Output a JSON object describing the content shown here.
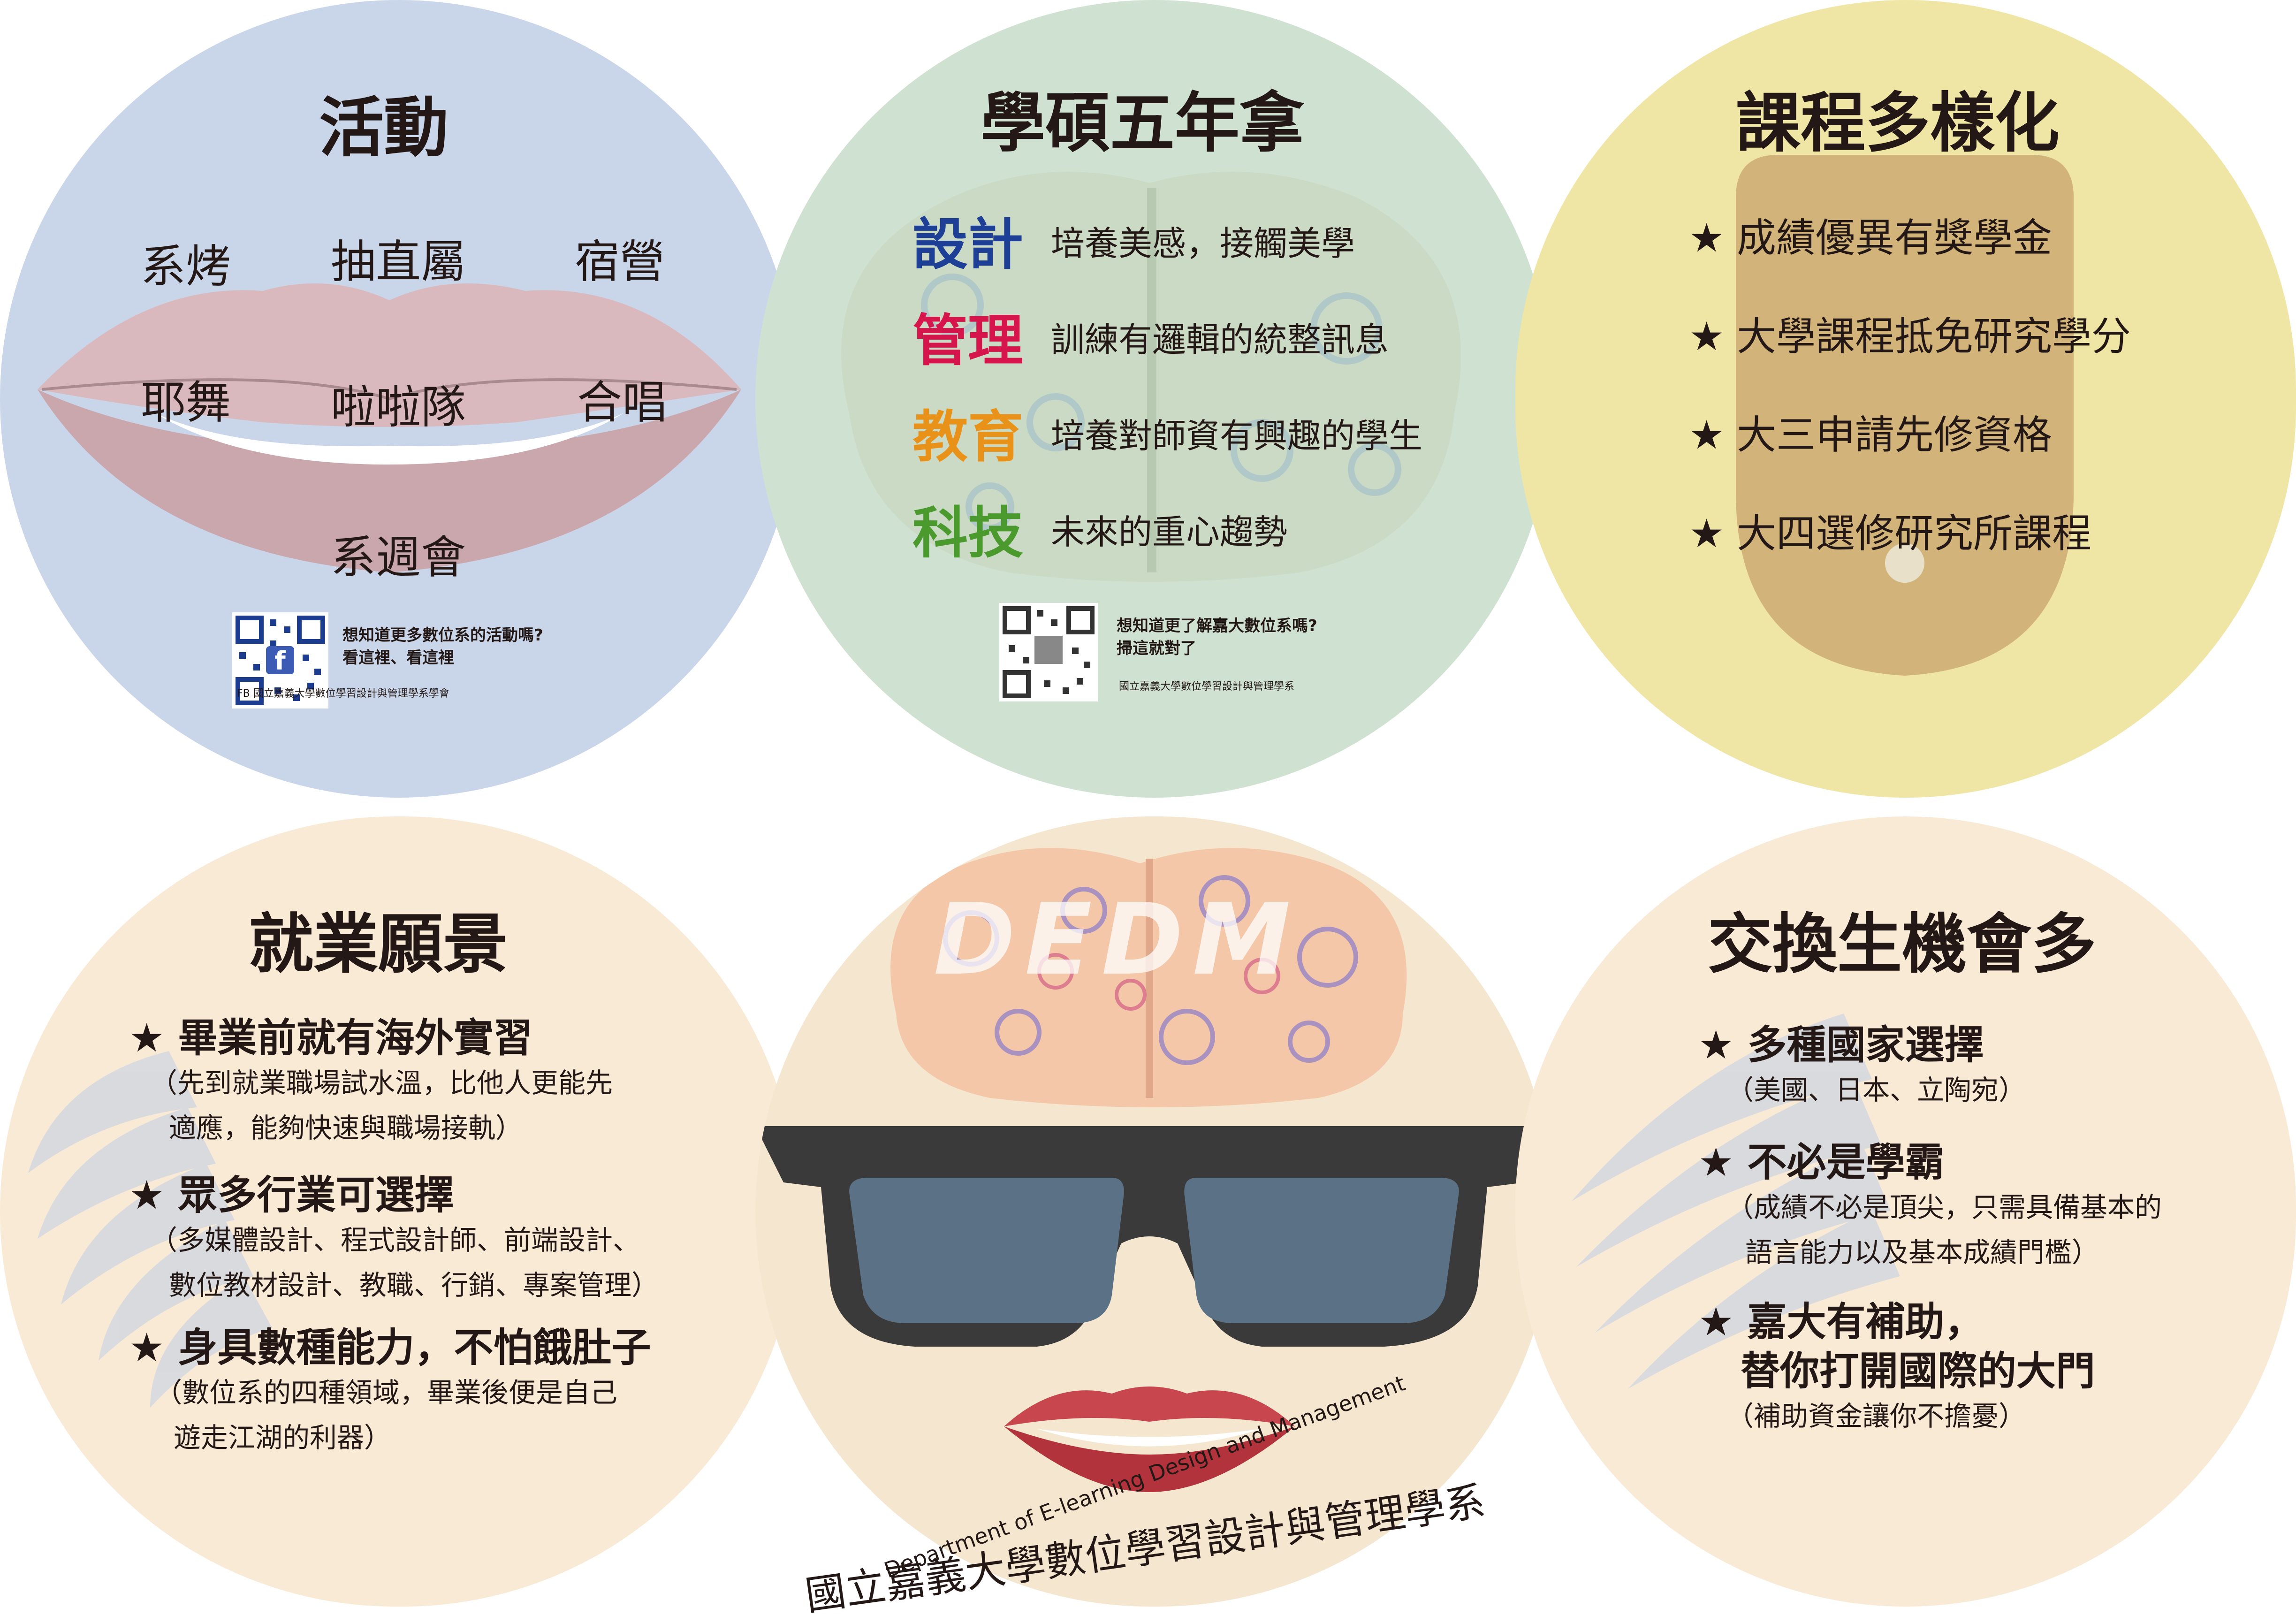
{
  "activities": {
    "title": "活動",
    "items": [
      "系烤",
      "抽直屬",
      "宿營",
      "耶舞",
      "啦啦隊",
      "合唱",
      "系週會"
    ],
    "qr_text_line1": "想知道更多數位系的活動嗎?",
    "qr_text_line2": "看這裡、看這裡",
    "qr_caption": "FB 國立嘉義大學數位學習設計與管理學系學會"
  },
  "degree": {
    "title": "學碩五年拿",
    "rows": [
      {
        "category": "設計",
        "desc": "培養美感，接觸美學",
        "color": "#1d3f95"
      },
      {
        "category": "管理",
        "desc": "訓練有邏輯的統整訊息",
        "color": "#d7154d"
      },
      {
        "category": "教育",
        "desc": "培養對師資有興趣的學生",
        "color": "#e9921a"
      },
      {
        "category": "科技",
        "desc": "未來的重心趨勢",
        "color": "#4b9a2e"
      }
    ],
    "qr_text_line1": "想知道更了解嘉大數位系嗎?",
    "qr_text_line2": "掃這就對了",
    "qr_caption": "國立嘉義大學數位學習設計與管理學系"
  },
  "courses": {
    "title": "課程多樣化",
    "items": [
      "★ 成績優異有獎學金",
      "★ 大學課程抵免研究學分",
      "★ 大三申請先修資格",
      "★ 大四選修研究所課程"
    ]
  },
  "career": {
    "title": "就業願景",
    "items": [
      {
        "head": "★ 畢業前就有海外實習",
        "sub1": "（先到就業職場試水溫，比他人更能先",
        "sub2": "適應，能夠快速與職場接軌）"
      },
      {
        "head": "★ 眾多行業可選擇",
        "sub1": "（多媒體設計、程式設計師、前端設計、",
        "sub2": "數位教材設計、教職、行銷、專案管理）"
      },
      {
        "head": "★ 身具數種能力，不怕餓肚子",
        "sub1": "（數位系的四種領域，畢業後便是自己",
        "sub2": "遊走江湖的利器）"
      }
    ]
  },
  "center": {
    "logo_text": "DEDM",
    "dept_en": "Department of E-learning Design and Management",
    "dept_zh": "國立嘉義大學數位學習設計與管理學系"
  },
  "exchange": {
    "title": "交換生機會多",
    "items": [
      {
        "head": "★ 多種國家選擇",
        "sub1": "（美國、日本、立陶宛）",
        "sub2": ""
      },
      {
        "head": "★ 不必是學霸",
        "sub1": "（成績不必是頂尖，只需具備基本的",
        "sub2": "語言能力以及基本成績門檻）"
      },
      {
        "head": "★ 嘉大有補助，",
        "head2": "替你打開國際的大門",
        "sub1": "（補助資金讓你不擔憂）"
      }
    ]
  },
  "colors": {
    "activities_bg": "#c9d6e9",
    "degree_bg": "#cfe1d1",
    "courses_bg": "#efe6a6",
    "career_bg": "#f9ead6",
    "center_bg": "#f5e7cf",
    "exchange_bg": "#f9ead6"
  }
}
